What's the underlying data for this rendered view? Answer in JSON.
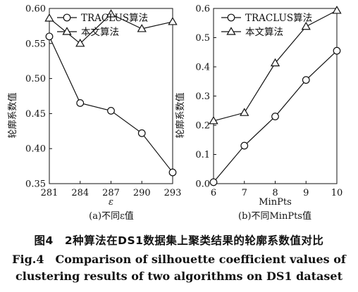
{
  "chart_data": [
    {
      "type": "line",
      "subcaption": "(a)不同ε值",
      "xlabel": "ε",
      "ylabel": "轮廓系数值",
      "x": [
        281,
        284,
        287,
        290,
        293
      ],
      "xticks": [
        "281",
        "284",
        "287",
        "290",
        "293"
      ],
      "ylim": [
        0.35,
        0.6
      ],
      "yticks": [
        "0.35",
        "0.40",
        "0.45",
        "0.50",
        "0.55",
        "0.60"
      ],
      "yticks_values": [
        0.35,
        0.4,
        0.45,
        0.5,
        0.55,
        0.6
      ],
      "grid": false,
      "legend": "top-left",
      "series": [
        {
          "name": "TRACLUS算法",
          "marker": "circle",
          "values": [
            0.56,
            0.465,
            0.454,
            0.422,
            0.366
          ]
        },
        {
          "name": "本文算法",
          "marker": "triangle",
          "values": [
            0.586,
            0.55,
            0.592,
            0.571,
            0.581
          ]
        }
      ]
    },
    {
      "type": "line",
      "subcaption": "(b)不同MinPts值",
      "xlabel": "MinPts",
      "ylabel": "轮廓系数值",
      "x": [
        6,
        7,
        8,
        9,
        10
      ],
      "xticks": [
        "6",
        "7",
        "8",
        "9",
        "10"
      ],
      "ylim": [
        0.0,
        0.6
      ],
      "yticks": [
        "0.0",
        "0.1",
        "0.2",
        "0.3",
        "0.4",
        "0.5",
        "0.6"
      ],
      "yticks_values": [
        0.0,
        0.1,
        0.2,
        0.3,
        0.4,
        0.5,
        0.6
      ],
      "grid": false,
      "legend": "top-left",
      "series": [
        {
          "name": "TRACLUS算法",
          "marker": "circle",
          "values": [
            0.005,
            0.13,
            0.23,
            0.355,
            0.455
          ]
        },
        {
          "name": "本文算法",
          "marker": "triangle",
          "values": [
            0.215,
            0.243,
            0.413,
            0.538,
            0.593
          ]
        }
      ]
    }
  ],
  "caption": {
    "zh": "图4　2种算法在DS1数据集上聚类结果的轮廓系数值对比",
    "en_line1": "Fig.4　Comparison of silhouette coefficient values of",
    "en_line2": "clustering results of two algorithms on DS1 dataset"
  }
}
